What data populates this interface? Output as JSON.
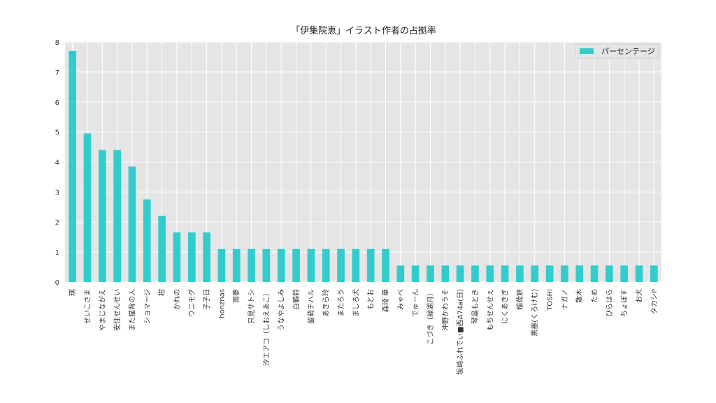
{
  "chart_data": {
    "type": "bar",
    "title": "「伊集院恵」イラスト作者の占拠率",
    "xlabel": "",
    "ylabel": "",
    "ylim": [
      0,
      8
    ],
    "yticks": [
      "0",
      "1",
      "2",
      "3",
      "4",
      "5",
      "6",
      "7",
      "8"
    ],
    "grid": true,
    "legend_position": "top-right",
    "series": [
      {
        "name": "パーセンテージ",
        "color": "#33CCCC",
        "values": [
          7.7,
          4.95,
          4.4,
          4.4,
          3.85,
          2.75,
          2.2,
          1.65,
          1.65,
          1.65,
          1.1,
          1.1,
          1.1,
          1.1,
          1.1,
          1.1,
          1.1,
          1.1,
          1.1,
          1.1,
          1.1,
          1.1,
          0.55,
          0.55,
          0.55,
          0.55,
          0.55,
          0.55,
          0.55,
          0.55,
          0.55,
          0.55,
          0.55,
          0.55,
          0.55,
          0.55,
          0.55,
          0.55,
          0.55,
          0.55
        ]
      }
    ],
    "categories": [
      "瑛",
      "せいこさま",
      "やまじながえ",
      "安住せんせい",
      "また猫背の人",
      "ショマージ",
      "柑",
      "かれの",
      "ウニモグ",
      "子子日",
      "honznas",
      "雨夢",
      "只見サトシ",
      "汐エアコ（しおえあこ）",
      "うなやよしみ",
      "白鶴鈴",
      "留萌チハル",
      "あきら玲",
      "またろう",
      "ましろ犬",
      "もとお",
      "森琦 華",
      "みゃべ",
      "でゅーん",
      "こづき（緑湖月）",
      "沖野かわうそ",
      "坂崎ふれでぃ■西A74a(日)",
      "琴晶もとき",
      "もちせんせぇ",
      "にくあきぎ",
      "稲荷餅",
      "黒墨(くろけむ)",
      "TOSHI",
      "ナガノ",
      "散木",
      "ため",
      "ひらはら",
      "ちょぼす",
      "お犬",
      "タカシP"
    ]
  }
}
